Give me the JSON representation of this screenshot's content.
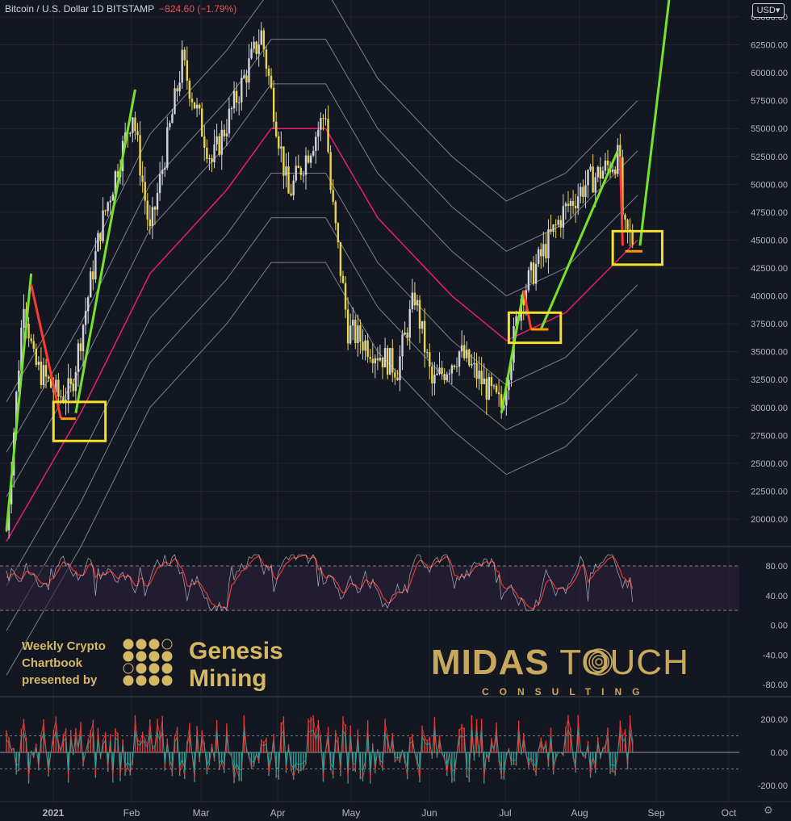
{
  "header": {
    "title": "Bitcoin / U.S. Dollar  1D  BITSTAMP",
    "change": "−824.60 (−1.79%)",
    "currency": "USD",
    "currency_arrow": "▾"
  },
  "branding": {
    "sponsor_lines": [
      "Weekly Crypto",
      "Chartbook",
      "presented by"
    ],
    "genesis_lines": [
      "Genesis",
      "Mining"
    ],
    "midas_bold": "MIDAS",
    "midas_light": " TOUCH",
    "consulting": "CONSULTING"
  },
  "icons": {
    "settings": "gear-icon",
    "currency_dropdown": "chevron-down-icon",
    "genesis_logo": "dot-grid-icon",
    "midas_logo": "fingerprint-icon"
  },
  "colors": {
    "background": "#131722",
    "grid": "#232632",
    "up_candle": "#d1d4dc",
    "down_candle": "#e8d44d",
    "ma": "#e91e63",
    "bands": "#9598a1",
    "green_lines": "#76e32a",
    "red_lines": "#ff3b30",
    "boxes": "#f5e02b",
    "osc_fast": "#d1d4dc",
    "osc_slow": "#e53935",
    "macd_up": "#e53935",
    "macd_down": "#26a69a"
  },
  "chart_data": [
    {
      "type": "candlestick",
      "price_axis": [
        "65000.00",
        "62500.00",
        "60000.00",
        "57500.00",
        "55000.00",
        "52500.00",
        "50000.00",
        "47500.00",
        "45000.00",
        "42500.00",
        "40000.00",
        "37500.00",
        "35000.00",
        "32500.00",
        "30000.00",
        "27500.00",
        "25000.00",
        "22500.00",
        "20000.00"
      ],
      "ylim": [
        18000,
        66000
      ],
      "x_axis": [
        "2021",
        "Feb",
        "Mar",
        "Apr",
        "May",
        "Jun",
        "Jul",
        "Aug",
        "Sep",
        "Oct"
      ],
      "x_range": [
        "2021-01-01",
        "2021-10-01"
      ],
      "close_path": [
        [
          "2021-01-01",
          19000
        ],
        [
          "2021-01-08",
          40000
        ],
        [
          "2021-01-12",
          34000
        ],
        [
          "2021-01-22",
          31000
        ],
        [
          "2021-01-27",
          31500
        ],
        [
          "2021-02-08",
          46000
        ],
        [
          "2021-02-21",
          56500
        ],
        [
          "2021-02-28",
          45500
        ],
        [
          "2021-03-13",
          61000
        ],
        [
          "2021-03-25",
          52000
        ],
        [
          "2021-04-14",
          63500
        ],
        [
          "2021-04-25",
          49000
        ],
        [
          "2021-05-10",
          56500
        ],
        [
          "2021-05-12",
          49500
        ],
        [
          "2021-05-19",
          37000
        ],
        [
          "2021-06-08",
          33500
        ],
        [
          "2021-06-15",
          40000
        ],
        [
          "2021-06-22",
          32000
        ],
        [
          "2021-07-03",
          35000
        ],
        [
          "2021-07-20",
          30000
        ],
        [
          "2021-07-28",
          40000
        ],
        [
          "2021-08-14",
          47500
        ],
        [
          "2021-08-23",
          50000
        ],
        [
          "2021-09-06",
          52500
        ],
        [
          "2021-09-07",
          46000
        ],
        [
          "2021-09-11",
          45000
        ]
      ],
      "ma_path": [
        [
          "2021-01-01",
          18000
        ],
        [
          "2021-01-31",
          29500
        ],
        [
          "2021-02-28",
          42000
        ],
        [
          "2021-03-31",
          49500
        ],
        [
          "2021-04-18",
          55000
        ],
        [
          "2021-05-10",
          55000
        ],
        [
          "2021-05-31",
          47000
        ],
        [
          "2021-06-30",
          40000
        ],
        [
          "2021-07-22",
          36000
        ],
        [
          "2021-08-15",
          38500
        ],
        [
          "2021-09-13",
          45000
        ]
      ],
      "bands": [
        {
          "offset": 12500
        },
        {
          "offset": 8000
        },
        {
          "offset": 4000
        },
        {
          "offset": -4000
        },
        {
          "offset": -8000
        },
        {
          "offset": -12000
        }
      ],
      "green_lines": [
        [
          [
            "2021-01-01",
            19000
          ],
          [
            "2021-01-11",
            42000
          ]
        ],
        [
          [
            "2021-01-29",
            29500
          ],
          [
            "2021-02-22",
            58500
          ]
        ],
        [
          [
            "2021-07-20",
            29500
          ],
          [
            "2021-07-29",
            40500
          ]
        ],
        [
          [
            "2021-08-05",
            37000
          ],
          [
            "2021-09-05",
            53000
          ]
        ],
        [
          [
            "2021-09-14",
            44500
          ],
          [
            "2021-09-26",
            67000
          ]
        ]
      ],
      "red_lines": [
        [
          [
            "2021-01-11",
            41000
          ],
          [
            "2021-01-23",
            29000
          ]
        ],
        [
          [
            "2021-07-29",
            40500
          ],
          [
            "2021-08-01",
            37000
          ]
        ],
        [
          [
            "2021-09-06",
            52500
          ],
          [
            "2021-09-07",
            44500
          ]
        ]
      ],
      "orange_segments": [
        [
          [
            "2021-01-23",
            29000
          ],
          [
            "2021-01-29",
            29000
          ]
        ],
        [
          [
            "2021-08-01",
            37000
          ],
          [
            "2021-08-08",
            37000
          ]
        ],
        [
          [
            "2021-09-08",
            44000
          ],
          [
            "2021-09-15",
            44000
          ]
        ]
      ],
      "boxes": [
        {
          "x": [
            "2021-01-20",
            "2021-02-10"
          ],
          "y": [
            27000,
            30500
          ]
        },
        {
          "x": [
            "2021-07-23",
            "2021-08-13"
          ],
          "y": [
            35800,
            38500
          ]
        },
        {
          "x": [
            "2021-09-03",
            "2021-09-23"
          ],
          "y": [
            42800,
            45800
          ]
        }
      ]
    },
    {
      "type": "line",
      "name": "stochastic",
      "y_axis": [
        "80.00",
        "40.00",
        "0.00",
        "-40.00",
        "-80.00"
      ],
      "ylim": [
        -100,
        100
      ],
      "levels": [
        80,
        20
      ]
    },
    {
      "type": "bar",
      "name": "histogram",
      "y_axis": [
        "200.00",
        "0.00",
        "-200.00"
      ],
      "ylim": [
        -280,
        280
      ]
    }
  ]
}
